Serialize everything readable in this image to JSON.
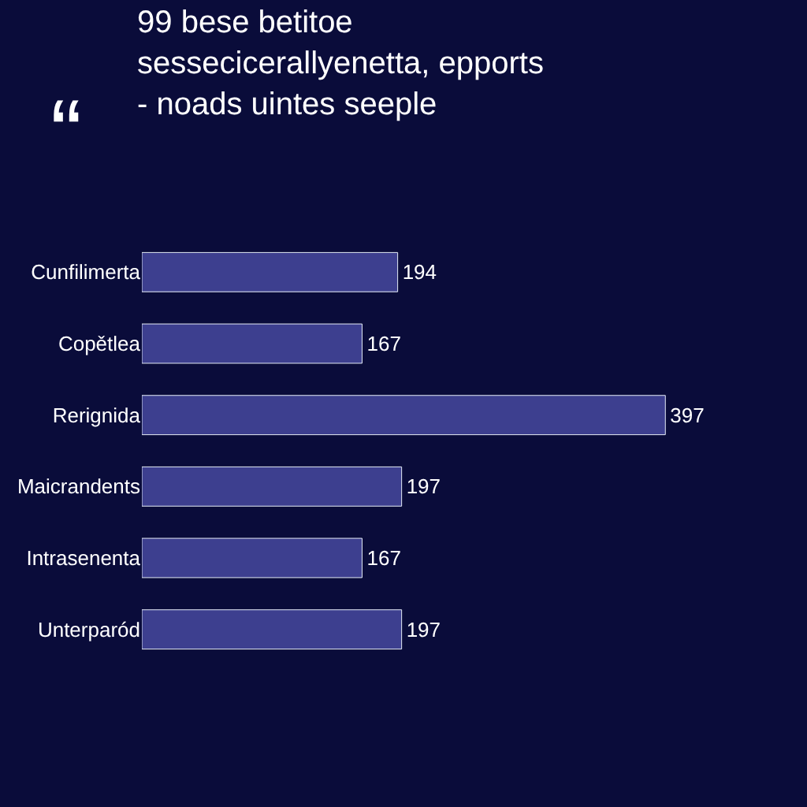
{
  "chart_data": {
    "type": "bar",
    "orientation": "horizontal",
    "title": "99 bese betitoe\nsessecicerallyenetta, epports\n- noads uintes seeple",
    "annotations": [
      "“"
    ],
    "categories": [
      "Cunfilimerta",
      "Copětlea",
      "Rerignida",
      "Maicrandents",
      "Intrasenenta",
      "Unterparód"
    ],
    "values": [
      194,
      167,
      397,
      197,
      167,
      197
    ],
    "color": "#3d3f8f",
    "data_labels": true
  }
}
